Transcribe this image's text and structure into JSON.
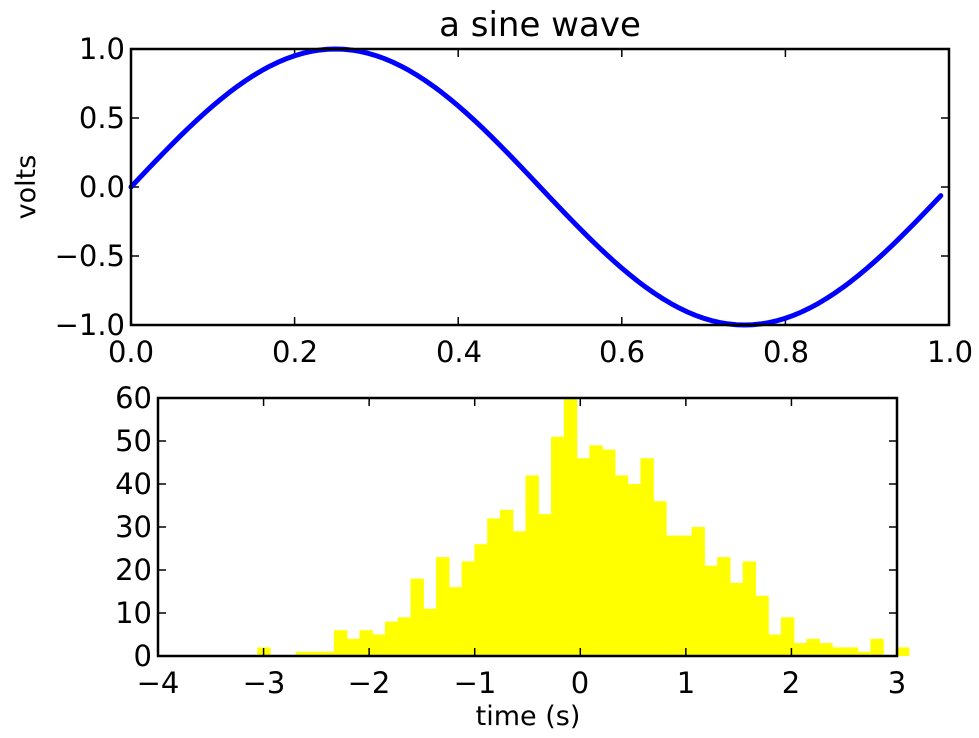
{
  "chart_data": [
    {
      "type": "line",
      "title": "a sine wave",
      "xlabel": "",
      "ylabel": "volts",
      "xlim": [
        0.0,
        0.99
      ],
      "ylim": [
        -1.0,
        1.0
      ],
      "xticks": [
        "0.0",
        "0.2",
        "0.4",
        "0.6",
        "0.8",
        "1.0"
      ],
      "yticks": [
        "−1.0",
        "−0.5",
        "0.0",
        "0.5",
        "1.0"
      ],
      "grid": false,
      "series": [
        {
          "function": "sin(2*pi*t)",
          "x_start": 0.0,
          "x_end": 0.99,
          "x_step": 0.01,
          "color": "#0000ff",
          "line_width": "thick"
        }
      ]
    },
    {
      "type": "bar",
      "subtype": "histogram",
      "title": "",
      "xlabel": "time (s)",
      "ylabel": "",
      "xlim": [
        -4,
        3
      ],
      "ylim": [
        0,
        60
      ],
      "xticks": [
        "−4",
        "−3",
        "−2",
        "−1",
        "0",
        "1",
        "2",
        "3"
      ],
      "yticks": [
        "0",
        "10",
        "20",
        "30",
        "40",
        "50",
        "60"
      ],
      "grid": false,
      "bin_start": -3.06,
      "bin_width": 0.121,
      "counts": [
        2,
        0,
        0,
        1,
        1,
        1,
        6,
        4,
        6,
        5,
        8,
        9,
        18,
        11,
        23,
        16,
        22,
        26,
        32,
        34,
        29,
        42,
        33,
        51,
        60,
        46,
        49,
        48,
        42,
        40,
        46,
        36,
        28,
        28,
        30,
        21,
        23,
        17,
        22,
        14,
        5,
        9,
        3,
        4,
        3,
        2,
        2,
        1,
        4,
        0,
        2
      ],
      "color": "#ffff00"
    }
  ]
}
